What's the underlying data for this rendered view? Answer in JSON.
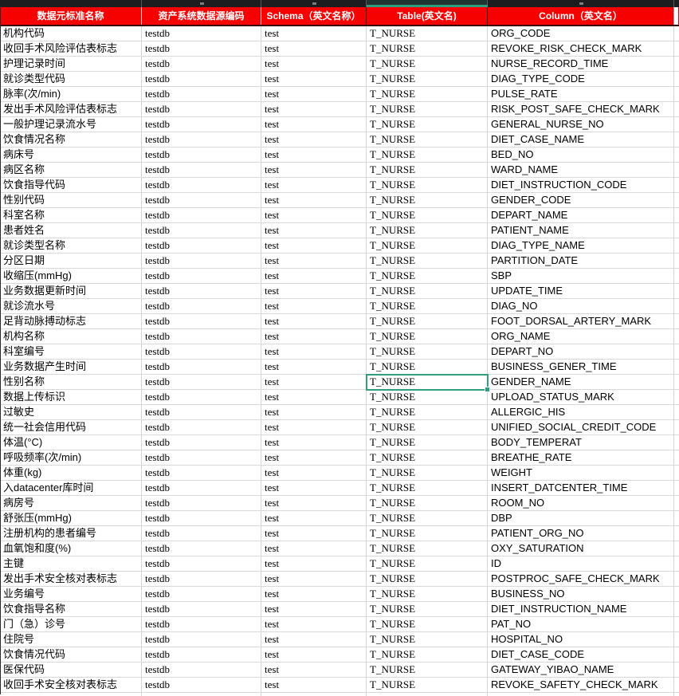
{
  "sheet": {
    "top_strip": {
      "selected_column_highlight_color": "#2e9e7e",
      "strip_bg": "#1d1d1f"
    },
    "header": {
      "bg": "#f70000",
      "text_color": "#ffffff",
      "columns": [
        "数据元标准名称",
        "资产系统数据源编码",
        "Schema（英文名称）",
        "Table(英文名)",
        "Column（英文名）"
      ]
    },
    "selection": {
      "row": 23,
      "col": 3,
      "color": "#2e9e7e"
    },
    "rows": [
      [
        "机构代码",
        "testdb",
        "test",
        "T_NURSE",
        "ORG_CODE"
      ],
      [
        "收回手术风险评估表标志",
        "testdb",
        "test",
        "T_NURSE",
        "REVOKE_RISK_CHECK_MARK"
      ],
      [
        "护理记录时间",
        "testdb",
        "test",
        "T_NURSE",
        "NURSE_RECORD_TIME"
      ],
      [
        "就诊类型代码",
        "testdb",
        "test",
        "T_NURSE",
        "DIAG_TYPE_CODE"
      ],
      [
        "脉率(次/min)",
        "testdb",
        "test",
        "T_NURSE",
        "PULSE_RATE"
      ],
      [
        "发出手术风险评估表标志",
        "testdb",
        "test",
        "T_NURSE",
        "RISK_POST_SAFE_CHECK_MARK"
      ],
      [
        "一般护理记录流水号",
        "testdb",
        "test",
        "T_NURSE",
        "GENERAL_NURSE_NO"
      ],
      [
        "饮食情况名称",
        "testdb",
        "test",
        "T_NURSE",
        "DIET_CASE_NAME"
      ],
      [
        "病床号",
        "testdb",
        "test",
        "T_NURSE",
        "BED_NO"
      ],
      [
        "病区名称",
        "testdb",
        "test",
        "T_NURSE",
        "WARD_NAME"
      ],
      [
        "饮食指导代码",
        "testdb",
        "test",
        "T_NURSE",
        "DIET_INSTRUCTION_CODE"
      ],
      [
        "性别代码",
        "testdb",
        "test",
        "T_NURSE",
        "GENDER_CODE"
      ],
      [
        "科室名称",
        "testdb",
        "test",
        "T_NURSE",
        "DEPART_NAME"
      ],
      [
        "患者姓名",
        "testdb",
        "test",
        "T_NURSE",
        "PATIENT_NAME"
      ],
      [
        "就诊类型名称",
        "testdb",
        "test",
        "T_NURSE",
        "DIAG_TYPE_NAME"
      ],
      [
        "分区日期",
        "testdb",
        "test",
        "T_NURSE",
        "PARTITION_DATE"
      ],
      [
        "收缩压(mmHg)",
        "testdb",
        "test",
        "T_NURSE",
        "SBP"
      ],
      [
        "业务数据更新时间",
        "testdb",
        "test",
        "T_NURSE",
        "UPDATE_TIME"
      ],
      [
        "就诊流水号",
        "testdb",
        "test",
        "T_NURSE",
        "DIAG_NO"
      ],
      [
        "足背动脉搏动标志",
        "testdb",
        "test",
        "T_NURSE",
        "FOOT_DORSAL_ARTERY_MARK"
      ],
      [
        "机构名称",
        "testdb",
        "test",
        "T_NURSE",
        "ORG_NAME"
      ],
      [
        "科室编号",
        "testdb",
        "test",
        "T_NURSE",
        "DEPART_NO"
      ],
      [
        "业务数据产生时间",
        "testdb",
        "test",
        "T_NURSE",
        "BUSINESS_GENER_TIME"
      ],
      [
        "性别名称",
        "testdb",
        "test",
        "T_NURSE",
        "GENDER_NAME"
      ],
      [
        "数据上传标识",
        "testdb",
        "test",
        "T_NURSE",
        "UPLOAD_STATUS_MARK"
      ],
      [
        "过敏史",
        "testdb",
        "test",
        "T_NURSE",
        "ALLERGIC_HIS"
      ],
      [
        "统一社会信用代码",
        "testdb",
        "test",
        "T_NURSE",
        "UNIFIED_SOCIAL_CREDIT_CODE"
      ],
      [
        "体温(°C)",
        "testdb",
        "test",
        "T_NURSE",
        "BODY_TEMPERAT"
      ],
      [
        "呼吸频率(次/min)",
        "testdb",
        "test",
        "T_NURSE",
        "BREATHE_RATE"
      ],
      [
        "体重(kg)",
        "testdb",
        "test",
        "T_NURSE",
        "WEIGHT"
      ],
      [
        "入datacenter库时间",
        "testdb",
        "test",
        "T_NURSE",
        "INSERT_DATCENTER_TIME"
      ],
      [
        "病房号",
        "testdb",
        "test",
        "T_NURSE",
        "ROOM_NO"
      ],
      [
        "舒张压(mmHg)",
        "testdb",
        "test",
        "T_NURSE",
        "DBP"
      ],
      [
        "注册机构的患者编号",
        "testdb",
        "test",
        "T_NURSE",
        "PATIENT_ORG_NO"
      ],
      [
        "血氧饱和度(%)",
        "testdb",
        "test",
        "T_NURSE",
        "OXY_SATURATION"
      ],
      [
        "主键",
        "testdb",
        "test",
        "T_NURSE",
        "ID"
      ],
      [
        "发出手术安全核对表标志",
        "testdb",
        "test",
        "T_NURSE",
        "POSTPROC_SAFE_CHECK_MARK"
      ],
      [
        "业务编号",
        "testdb",
        "test",
        "T_NURSE",
        "BUSINESS_NO"
      ],
      [
        "饮食指导名称",
        "testdb",
        "test",
        "T_NURSE",
        "DIET_INSTRUCTION_NAME"
      ],
      [
        "门（急）诊号",
        "testdb",
        "test",
        "T_NURSE",
        "PAT_NO"
      ],
      [
        "住院号",
        "testdb",
        "test",
        "T_NURSE",
        "HOSPITAL_NO"
      ],
      [
        "饮食情况代码",
        "testdb",
        "test",
        "T_NURSE",
        "DIET_CASE_CODE"
      ],
      [
        "医保代码",
        "testdb",
        "test",
        "T_NURSE",
        "GATEWAY_YIBAO_NAME"
      ],
      [
        "收回手术安全核对表标志",
        "testdb",
        "test",
        "T_NURSE",
        "REVOKE_SAFETY_CHECK_MARK"
      ]
    ]
  }
}
